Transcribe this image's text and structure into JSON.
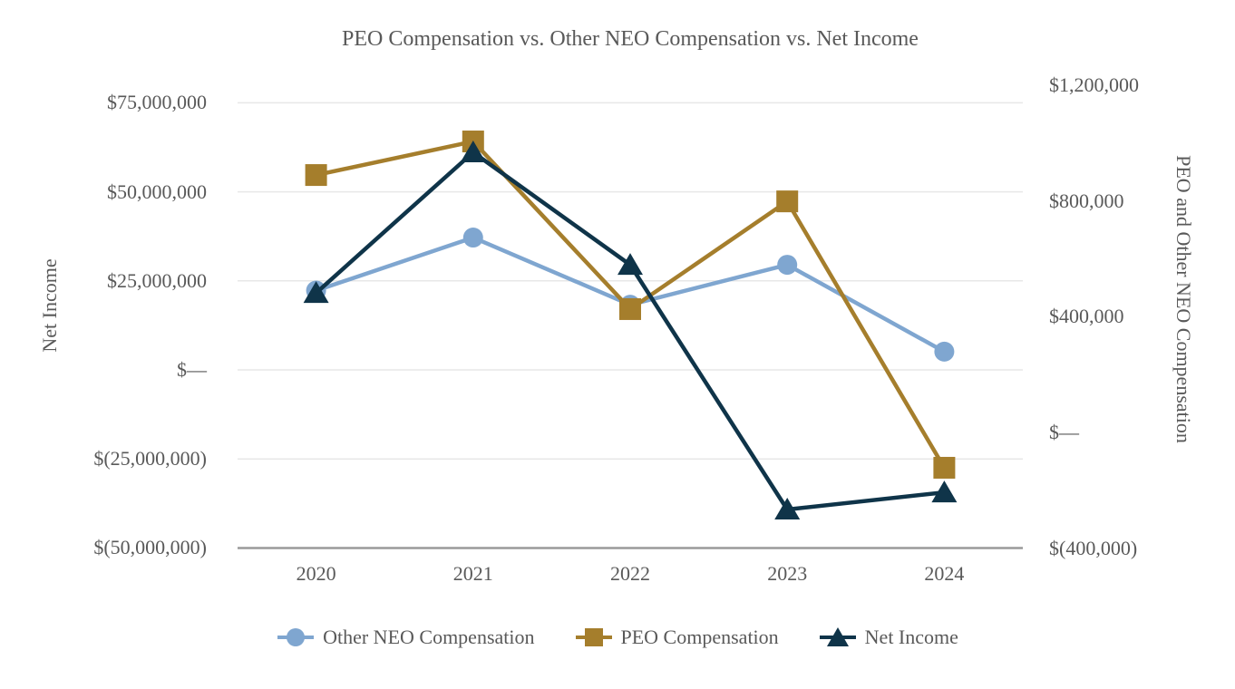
{
  "chart_data": {
    "type": "line",
    "title": "PEO Compensation vs. Other NEO Compensation vs. Net Income",
    "categories": [
      "2020",
      "2021",
      "2022",
      "2023",
      "2024"
    ],
    "left_axis": {
      "label": "Net Income",
      "ticks": [
        {
          "label": "$75,000,000",
          "value": 75000000
        },
        {
          "label": "$50,000,000",
          "value": 50000000
        },
        {
          "label": "$25,000,000",
          "value": 25000000
        },
        {
          "label": "$—",
          "value": 0
        },
        {
          "label": "$(25,000,000)",
          "value": -25000000
        },
        {
          "label": "$(50,000,000)",
          "value": -50000000
        }
      ],
      "range": [
        -50000000,
        75000000
      ]
    },
    "right_axis": {
      "label": "PEO and Other NEO Compensation",
      "ticks": [
        {
          "label": "$1,200,000",
          "value": 1200000
        },
        {
          "label": "$800,000",
          "value": 800000
        },
        {
          "label": "$400,000",
          "value": 400000
        },
        {
          "label": "$—",
          "value": 0
        },
        {
          "label": "$(400,000)",
          "value": -400000
        }
      ],
      "range": [
        -420000,
        1160000
      ]
    },
    "series": [
      {
        "name": "Other NEO Compensation",
        "axis": "right",
        "marker": "circle",
        "color": "#7FA6D0",
        "values": [
          490000,
          673000,
          441000,
          579000,
          279000
        ]
      },
      {
        "name": "PEO Compensation",
        "axis": "right",
        "marker": "square",
        "color": "#A57E2C",
        "values": [
          889000,
          1005000,
          426000,
          798000,
          -122000
        ]
      },
      {
        "name": "Net Income",
        "axis": "left",
        "marker": "triangle",
        "color": "#0F3449",
        "values": [
          21600000,
          61100000,
          29500000,
          -39200000,
          -34400000
        ]
      }
    ],
    "legend_position": "bottom",
    "grid": true,
    "colors": {
      "text": "#595959",
      "gridline": "#E7E7E7",
      "axis_line": "#9A9A9A",
      "background": "#FFFFFF"
    }
  }
}
